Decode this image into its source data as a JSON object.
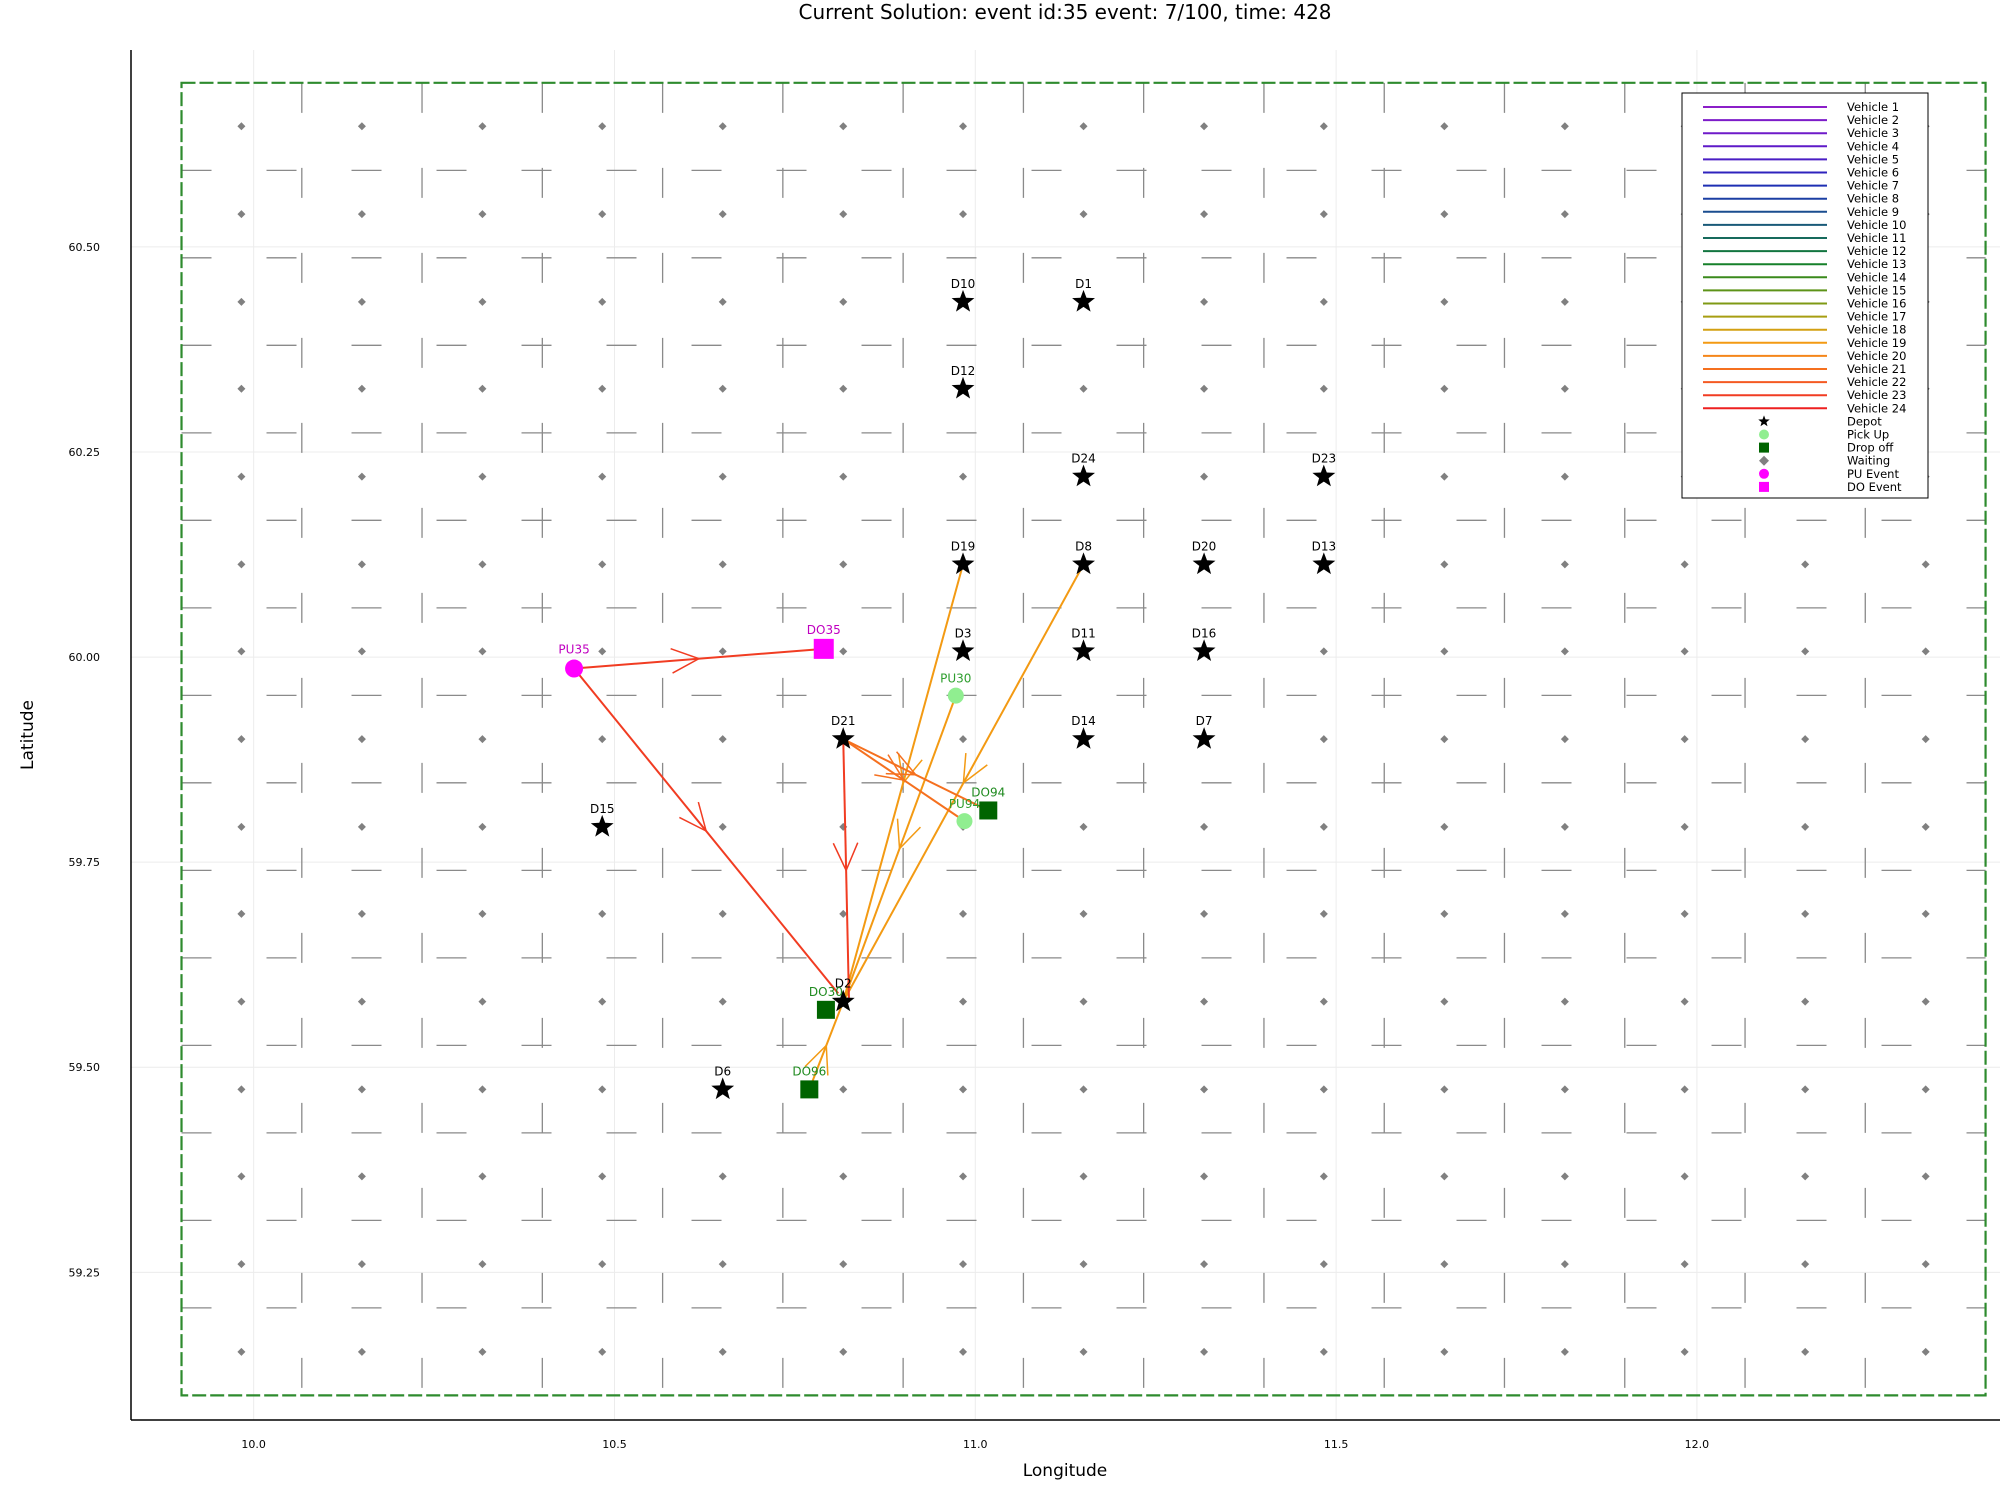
{
  "chart_data": {
    "type": "scatter",
    "title": "Current Solution: event id:35 event: 7/100, time: 428",
    "xlabel": "Longitude",
    "ylabel": "Latitude",
    "xlim": [
      9.83,
      12.42
    ],
    "ylim": [
      59.07,
      60.74
    ],
    "xticks": [
      10.0,
      10.5,
      11.0,
      11.5,
      12.0
    ],
    "xtick_labels": [
      "10.0",
      "10.5",
      "11.0",
      "11.5",
      "12.0"
    ],
    "yticks": [
      59.25,
      59.5,
      59.75,
      60.0,
      60.25,
      60.5
    ],
    "ytick_labels": [
      "59.25",
      "59.50",
      "59.75",
      "60.00",
      "60.25",
      "60.50"
    ],
    "grid": true,
    "legend_position": "top-right",
    "region": {
      "x_min": 9.9,
      "x_max": 12.4,
      "y_min": 59.1,
      "y_max": 60.7,
      "color": "#2e8b2e"
    },
    "cell_grid": {
      "x_lines": [
        10.0667,
        10.2333,
        10.4,
        10.5667,
        10.7333,
        10.9,
        11.0667,
        11.2333,
        11.4,
        11.5667,
        11.7333,
        11.9,
        12.0667,
        12.2333
      ],
      "y_lines": [
        59.2067,
        59.3133,
        59.42,
        59.5267,
        59.6333,
        59.74,
        59.8467,
        59.9533,
        60.06,
        60.1667,
        60.2733,
        60.38,
        60.4867,
        60.5933
      ]
    },
    "waiting_points": {
      "x": [
        9.983,
        10.15,
        10.317,
        10.483,
        10.65,
        10.817,
        10.983,
        11.15,
        11.317,
        11.483,
        11.65,
        11.817,
        11.983,
        12.15,
        12.317
      ],
      "y": [
        59.153,
        59.26,
        59.367,
        59.473,
        59.58,
        59.687,
        59.793,
        59.9,
        60.007,
        60.113,
        60.22,
        60.327,
        60.433,
        60.54,
        60.647
      ]
    },
    "legend": [
      {
        "label": "Vehicle 1",
        "color": "#8b1fc8",
        "kind": "line"
      },
      {
        "label": "Vehicle 2",
        "color": "#7d1cc9",
        "kind": "line"
      },
      {
        "label": "Vehicle 3",
        "color": "#6f1ac9",
        "kind": "line"
      },
      {
        "label": "Vehicle 4",
        "color": "#5f1ac8",
        "kind": "line"
      },
      {
        "label": "Vehicle 5",
        "color": "#4a1ec4",
        "kind": "line"
      },
      {
        "label": "Vehicle 6",
        "color": "#2f23bd",
        "kind": "line"
      },
      {
        "label": "Vehicle 7",
        "color": "#1e2fb3",
        "kind": "line"
      },
      {
        "label": "Vehicle 8",
        "color": "#1b3fa3",
        "kind": "line"
      },
      {
        "label": "Vehicle 9",
        "color": "#1a4d8f",
        "kind": "line"
      },
      {
        "label": "Vehicle 10",
        "color": "#195a78",
        "kind": "line"
      },
      {
        "label": "Vehicle 11",
        "color": "#166a5c",
        "kind": "line"
      },
      {
        "label": "Vehicle 12",
        "color": "#127540",
        "kind": "line"
      },
      {
        "label": "Vehicle 13",
        "color": "#16802a",
        "kind": "line"
      },
      {
        "label": "Vehicle 14",
        "color": "#3a8a1c",
        "kind": "line"
      },
      {
        "label": "Vehicle 15",
        "color": "#5d9318",
        "kind": "line"
      },
      {
        "label": "Vehicle 16",
        "color": "#7f9a14",
        "kind": "line"
      },
      {
        "label": "Vehicle 17",
        "color": "#a79e12",
        "kind": "line"
      },
      {
        "label": "Vehicle 18",
        "color": "#d3a012",
        "kind": "line"
      },
      {
        "label": "Vehicle 19",
        "color": "#f39a13",
        "kind": "line"
      },
      {
        "label": "Vehicle 20",
        "color": "#f5861a",
        "kind": "line"
      },
      {
        "label": "Vehicle 21",
        "color": "#f5701f",
        "kind": "line"
      },
      {
        "label": "Vehicle 22",
        "color": "#f45a22",
        "kind": "line"
      },
      {
        "label": "Vehicle 23",
        "color": "#f13c22",
        "kind": "line"
      },
      {
        "label": "Vehicle 24",
        "color": "#ee2020",
        "kind": "line"
      },
      {
        "label": "Depot",
        "color": "#000000",
        "kind": "star"
      },
      {
        "label": "Pick Up",
        "color": "#90ee90",
        "kind": "circle"
      },
      {
        "label": "Drop off",
        "color": "#006400",
        "kind": "square"
      },
      {
        "label": "Waiting",
        "color": "#808080",
        "kind": "diamond"
      },
      {
        "label": "PU Event",
        "color": "#ff00ff",
        "kind": "circle"
      },
      {
        "label": "DO Event",
        "color": "#ff00ff",
        "kind": "square"
      }
    ],
    "depots": [
      {
        "label": "D10",
        "x": 10.983,
        "y": 60.433
      },
      {
        "label": "D1",
        "x": 11.15,
        "y": 60.433
      },
      {
        "label": "D12",
        "x": 10.983,
        "y": 60.327
      },
      {
        "label": "D24",
        "x": 11.15,
        "y": 60.22
      },
      {
        "label": "D23",
        "x": 11.483,
        "y": 60.22
      },
      {
        "label": "D19",
        "x": 10.983,
        "y": 60.113
      },
      {
        "label": "D8",
        "x": 11.15,
        "y": 60.113
      },
      {
        "label": "D20",
        "x": 11.317,
        "y": 60.113
      },
      {
        "label": "D13",
        "x": 11.483,
        "y": 60.113
      },
      {
        "label": "D3",
        "x": 10.983,
        "y": 60.007
      },
      {
        "label": "D11",
        "x": 11.15,
        "y": 60.007
      },
      {
        "label": "D16",
        "x": 11.317,
        "y": 60.007
      },
      {
        "label": "D21",
        "x": 10.817,
        "y": 59.9
      },
      {
        "label": "D14",
        "x": 11.15,
        "y": 59.9
      },
      {
        "label": "D7",
        "x": 11.317,
        "y": 59.9
      },
      {
        "label": "D15",
        "x": 10.483,
        "y": 59.793
      },
      {
        "label": "D2",
        "x": 10.817,
        "y": 59.58
      },
      {
        "label": "D6",
        "x": 10.65,
        "y": 59.473
      }
    ],
    "pickups": [
      {
        "label": "PU30",
        "x": 10.973,
        "y": 59.953
      },
      {
        "label": "PU94",
        "x": 10.985,
        "y": 59.8
      }
    ],
    "dropoffs": [
      {
        "label": "DO94",
        "x": 11.018,
        "y": 59.813
      },
      {
        "label": "DO30",
        "x": 10.793,
        "y": 59.57
      },
      {
        "label": "DO96",
        "x": 10.77,
        "y": 59.473
      }
    ],
    "events": [
      {
        "label": "PU35",
        "kind": "pickup",
        "x": 10.444,
        "y": 59.986
      },
      {
        "label": "DO35",
        "kind": "dropoff",
        "x": 10.79,
        "y": 60.01
      }
    ],
    "routes": [
      {
        "color": "#f39a13",
        "x": [
          10.983,
          10.817
        ],
        "y": [
          60.113,
          59.58
        ]
      },
      {
        "color": "#f39a13",
        "x": [
          11.15,
          10.817
        ],
        "y": [
          60.113,
          59.58
        ]
      },
      {
        "color": "#f39a13",
        "x": [
          10.973,
          10.817
        ],
        "y": [
          59.953,
          59.58
        ]
      },
      {
        "color": "#f39a13",
        "x": [
          10.77,
          10.817
        ],
        "y": [
          59.473,
          59.58
        ]
      },
      {
        "color": "#f5701f",
        "x": [
          10.817,
          11.018
        ],
        "y": [
          59.9,
          59.813
        ]
      },
      {
        "color": "#f5701f",
        "x": [
          10.817,
          10.985
        ],
        "y": [
          59.9,
          59.8
        ]
      },
      {
        "color": "#f13c22",
        "x": [
          10.444,
          10.79
        ],
        "y": [
          59.986,
          60.01
        ]
      },
      {
        "color": "#f13c22",
        "x": [
          10.444,
          10.81
        ],
        "y": [
          59.986,
          59.59
        ]
      },
      {
        "color": "#f13c22",
        "x": [
          10.817,
          10.825
        ],
        "y": [
          59.9,
          59.58
        ]
      }
    ]
  }
}
